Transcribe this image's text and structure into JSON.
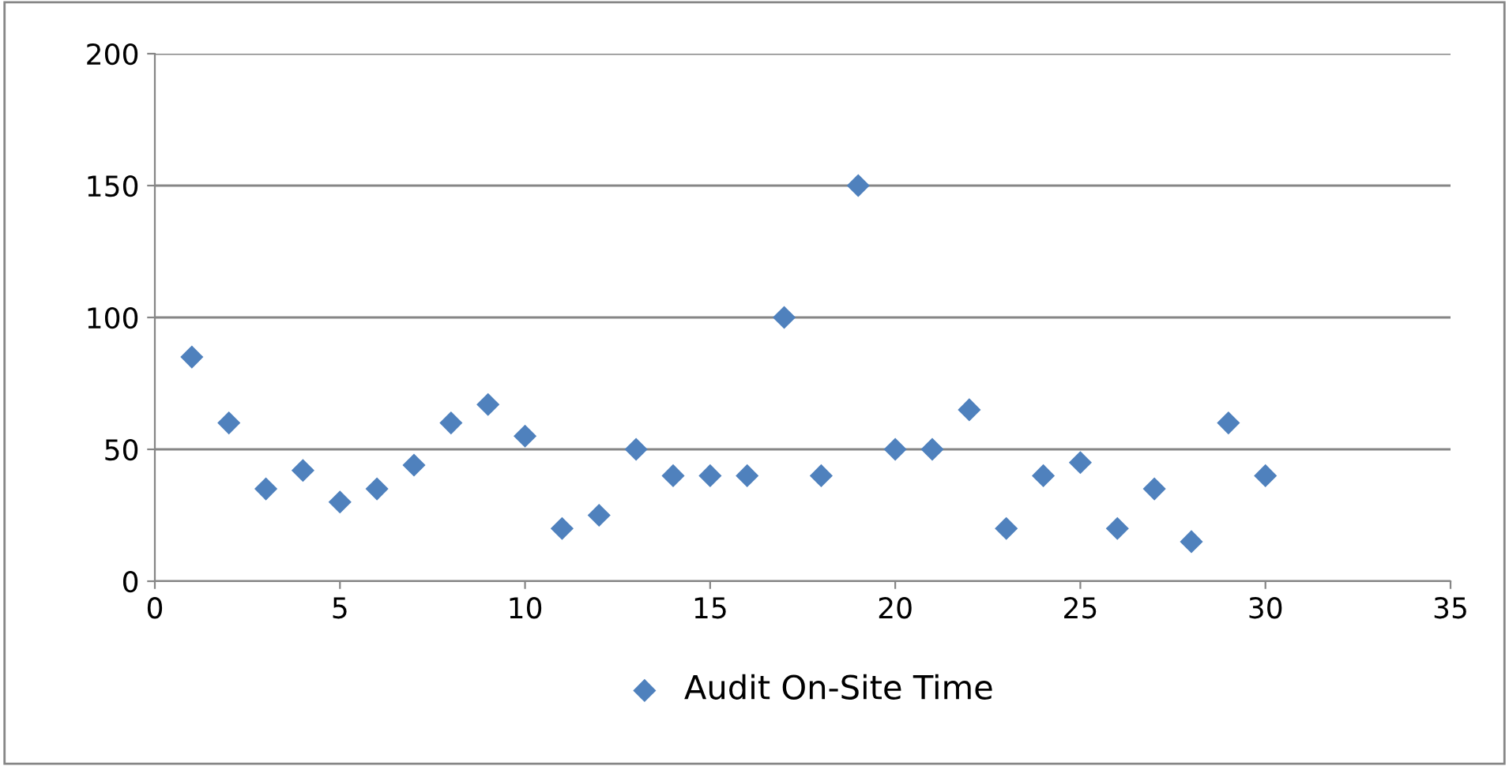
{
  "chart_data": {
    "type": "scatter",
    "x": [
      1,
      2,
      3,
      4,
      5,
      6,
      7,
      8,
      9,
      10,
      11,
      12,
      13,
      14,
      15,
      16,
      17,
      18,
      19,
      20,
      21,
      22,
      23,
      24,
      25,
      26,
      27,
      28,
      29,
      30
    ],
    "series": [
      {
        "name": "Audit On-Site Time",
        "color": "#4f81bd",
        "values": [
          85,
          60,
          35,
          42,
          30,
          35,
          44,
          60,
          67,
          55,
          20,
          25,
          50,
          40,
          40,
          40,
          100,
          40,
          150,
          50,
          50,
          65,
          20,
          40,
          45,
          20,
          35,
          15,
          60,
          40
        ]
      }
    ],
    "xlim": [
      0,
      35
    ],
    "xticks": [
      0,
      5,
      10,
      15,
      20,
      25,
      30,
      35
    ],
    "ylim": [
      0,
      200
    ],
    "yticks": [
      0,
      50,
      100,
      150,
      200
    ],
    "grid": "y",
    "legend": "bottom",
    "marker": "diamond"
  }
}
